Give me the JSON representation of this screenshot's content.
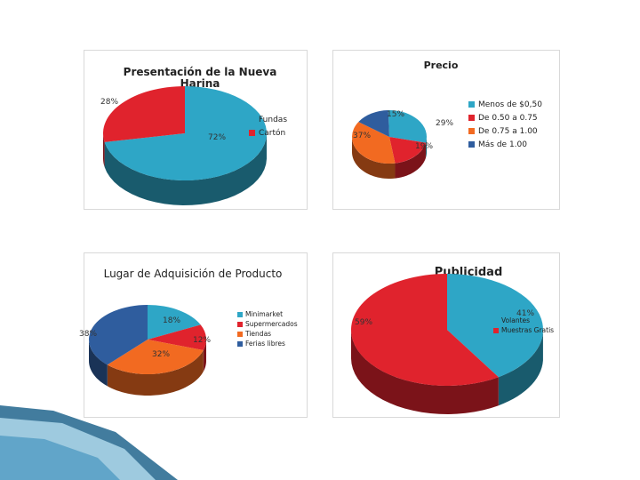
{
  "chart_data": [
    {
      "type": "pie",
      "title": "Presentación de la Nueva Harina",
      "categories": [
        "Fundas",
        "Cartón"
      ],
      "values": [
        72,
        28
      ],
      "colors": [
        "#2ea6c6",
        "#e0232d"
      ],
      "labels": [
        "72%",
        "28%"
      ],
      "legend_position": "right"
    },
    {
      "type": "pie",
      "title": "Precio",
      "categories": [
        "Menos de $0,50",
        "De 0.50 a 0.75",
        "De 0.75 a 1.00",
        "Más de 1.00"
      ],
      "values": [
        29,
        19,
        37,
        15
      ],
      "colors": [
        "#2ea6c6",
        "#e0232d",
        "#f26a21",
        "#2f5d9e"
      ],
      "labels": [
        "29%",
        "19%",
        "37%",
        "15%"
      ],
      "legend_position": "right"
    },
    {
      "type": "pie",
      "title": "Lugar de Adquisición de Producto",
      "categories": [
        "Minimarket",
        "Supermercados",
        "Tiendas",
        "Ferias libres"
      ],
      "values": [
        18,
        12,
        32,
        38
      ],
      "colors": [
        "#2ea6c6",
        "#e0232d",
        "#f26a21",
        "#2f5d9e"
      ],
      "labels": [
        "18%",
        "12%",
        "32%",
        "38%"
      ],
      "legend_position": "right"
    },
    {
      "type": "pie",
      "title": "Publicidad",
      "categories": [
        "Volantes",
        "Muestras Gratis"
      ],
      "values": [
        41,
        59
      ],
      "colors": [
        "#2ea6c6",
        "#e0232d"
      ],
      "labels": [
        "41%",
        "59%"
      ],
      "legend_position": "right"
    }
  ]
}
